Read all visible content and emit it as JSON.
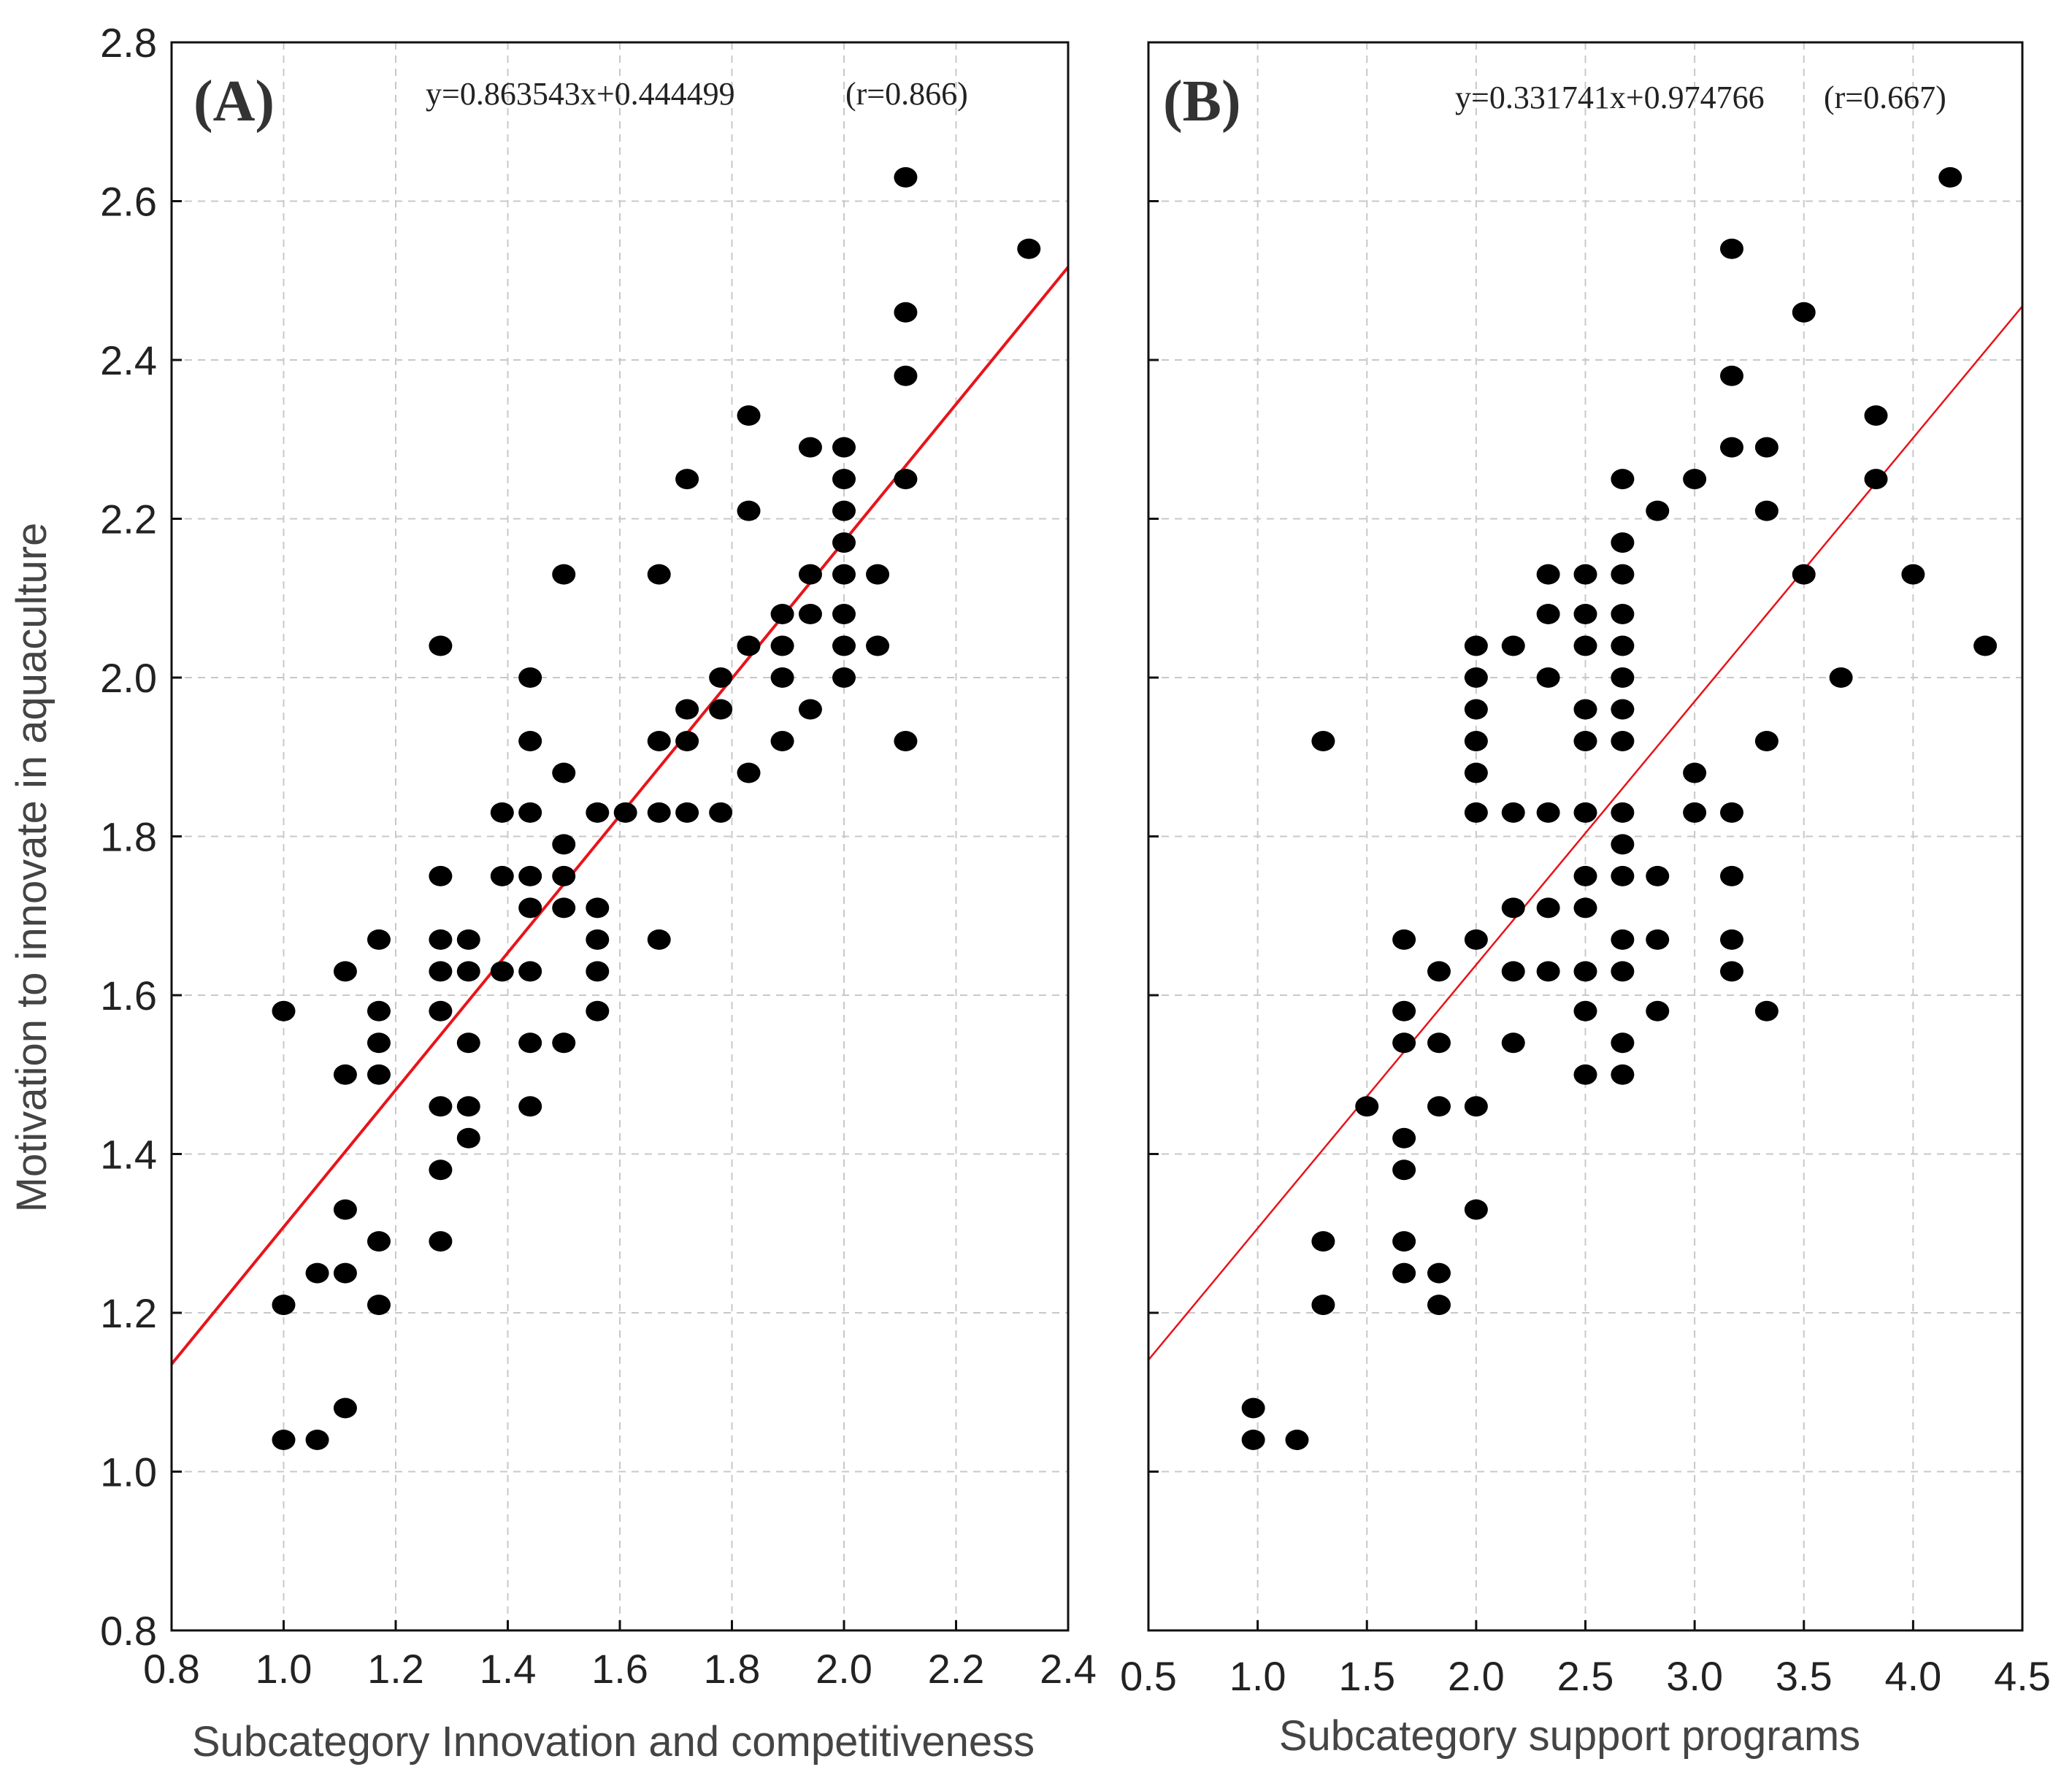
{
  "chart_data": [
    {
      "type": "scatter",
      "panel_label": "(A)",
      "equation": "y=0.863543x+0.444499",
      "r_label": "(r=0.866)",
      "xlabel": "Subcategory Innovation and competitiveness",
      "ylabel": "Motivation to innovate in aquaculture",
      "xlim": [
        0.8,
        2.4
      ],
      "ylim": [
        0.8,
        2.8
      ],
      "xticks": [
        "0.8",
        "1.0",
        "1.2",
        "1.4",
        "1.6",
        "1.8",
        "2.0",
        "2.2",
        "2.4"
      ],
      "yticks": [
        "0.8",
        "1.0",
        "1.2",
        "1.4",
        "1.6",
        "1.8",
        "2.0",
        "2.2",
        "2.4",
        "2.6",
        "2.8"
      ],
      "grid": true,
      "fit": {
        "slope": 0.863543,
        "intercept": 0.444499,
        "color": "#e8141a"
      },
      "points": [
        [
          1.0,
          1.58
        ],
        [
          1.0,
          1.21
        ],
        [
          1.0,
          1.04
        ],
        [
          1.06,
          1.25
        ],
        [
          1.06,
          1.04
        ],
        [
          1.11,
          1.63
        ],
        [
          1.11,
          1.5
        ],
        [
          1.11,
          1.33
        ],
        [
          1.11,
          1.25
        ],
        [
          1.11,
          1.08
        ],
        [
          1.17,
          1.67
        ],
        [
          1.17,
          1.58
        ],
        [
          1.17,
          1.54
        ],
        [
          1.17,
          1.5
        ],
        [
          1.17,
          1.29
        ],
        [
          1.17,
          1.21
        ],
        [
          1.28,
          2.04
        ],
        [
          1.28,
          1.75
        ],
        [
          1.28,
          1.67
        ],
        [
          1.28,
          1.63
        ],
        [
          1.28,
          1.58
        ],
        [
          1.28,
          1.46
        ],
        [
          1.28,
          1.38
        ],
        [
          1.28,
          1.29
        ],
        [
          1.33,
          1.67
        ],
        [
          1.33,
          1.63
        ],
        [
          1.33,
          1.54
        ],
        [
          1.33,
          1.46
        ],
        [
          1.33,
          1.42
        ],
        [
          1.39,
          1.83
        ],
        [
          1.39,
          1.75
        ],
        [
          1.39,
          1.63
        ],
        [
          1.44,
          2.0
        ],
        [
          1.44,
          1.92
        ],
        [
          1.44,
          1.83
        ],
        [
          1.44,
          1.75
        ],
        [
          1.44,
          1.71
        ],
        [
          1.44,
          1.63
        ],
        [
          1.44,
          1.54
        ],
        [
          1.44,
          1.46
        ],
        [
          1.5,
          2.13
        ],
        [
          1.5,
          1.88
        ],
        [
          1.5,
          1.79
        ],
        [
          1.5,
          1.75
        ],
        [
          1.5,
          1.71
        ],
        [
          1.5,
          1.54
        ],
        [
          1.56,
          1.83
        ],
        [
          1.56,
          1.71
        ],
        [
          1.56,
          1.67
        ],
        [
          1.56,
          1.63
        ],
        [
          1.56,
          1.58
        ],
        [
          1.61,
          1.83
        ],
        [
          1.67,
          2.13
        ],
        [
          1.67,
          1.92
        ],
        [
          1.67,
          1.83
        ],
        [
          1.67,
          1.67
        ],
        [
          1.72,
          2.25
        ],
        [
          1.72,
          1.96
        ],
        [
          1.72,
          1.92
        ],
        [
          1.72,
          1.83
        ],
        [
          1.78,
          2.0
        ],
        [
          1.78,
          1.96
        ],
        [
          1.78,
          1.83
        ],
        [
          1.83,
          2.33
        ],
        [
          1.83,
          2.21
        ],
        [
          1.83,
          2.04
        ],
        [
          1.83,
          1.88
        ],
        [
          1.89,
          2.08
        ],
        [
          1.89,
          2.04
        ],
        [
          1.89,
          2.0
        ],
        [
          1.89,
          1.92
        ],
        [
          1.94,
          2.29
        ],
        [
          1.94,
          2.13
        ],
        [
          1.94,
          2.08
        ],
        [
          1.94,
          1.96
        ],
        [
          2.0,
          2.29
        ],
        [
          2.0,
          2.25
        ],
        [
          2.0,
          2.21
        ],
        [
          2.0,
          2.17
        ],
        [
          2.0,
          2.13
        ],
        [
          2.0,
          2.08
        ],
        [
          2.0,
          2.04
        ],
        [
          2.0,
          2.0
        ],
        [
          2.06,
          2.13
        ],
        [
          2.06,
          2.04
        ],
        [
          2.11,
          2.63
        ],
        [
          2.11,
          2.46
        ],
        [
          2.11,
          2.38
        ],
        [
          2.11,
          2.25
        ],
        [
          2.11,
          1.92
        ],
        [
          2.33,
          2.54
        ]
      ]
    },
    {
      "type": "scatter",
      "panel_label": "(B)",
      "equation": "y=0.331741x+0.974766",
      "r_label": "(r=0.667)",
      "xlabel": "Subcategory support programs",
      "ylabel": "",
      "xlim": [
        0.5,
        4.5
      ],
      "ylim": [
        0.8,
        2.8
      ],
      "xticks": [
        "0.5",
        "1.0",
        "1.5",
        "2.0",
        "2.5",
        "3.0",
        "3.5",
        "4.0",
        "4.5"
      ],
      "yticks": [],
      "grid": true,
      "fit": {
        "slope": 0.331741,
        "intercept": 0.974766,
        "color": "#e8141a"
      },
      "points": [
        [
          0.98,
          1.08
        ],
        [
          0.98,
          1.04
        ],
        [
          1.18,
          1.04
        ],
        [
          1.3,
          1.92
        ],
        [
          1.3,
          1.29
        ],
        [
          1.3,
          1.21
        ],
        [
          1.5,
          1.46
        ],
        [
          1.67,
          1.67
        ],
        [
          1.67,
          1.58
        ],
        [
          1.67,
          1.54
        ],
        [
          1.67,
          1.42
        ],
        [
          1.67,
          1.38
        ],
        [
          1.67,
          1.29
        ],
        [
          1.67,
          1.25
        ],
        [
          1.83,
          1.63
        ],
        [
          1.83,
          1.54
        ],
        [
          1.83,
          1.46
        ],
        [
          1.83,
          1.25
        ],
        [
          1.83,
          1.21
        ],
        [
          2.0,
          2.04
        ],
        [
          2.0,
          2.0
        ],
        [
          2.0,
          1.96
        ],
        [
          2.0,
          1.92
        ],
        [
          2.0,
          1.88
        ],
        [
          2.0,
          1.83
        ],
        [
          2.0,
          1.67
        ],
        [
          2.0,
          1.46
        ],
        [
          2.0,
          1.33
        ],
        [
          2.17,
          2.04
        ],
        [
          2.17,
          1.83
        ],
        [
          2.17,
          1.71
        ],
        [
          2.17,
          1.63
        ],
        [
          2.17,
          1.54
        ],
        [
          2.33,
          2.13
        ],
        [
          2.33,
          2.08
        ],
        [
          2.33,
          2.0
        ],
        [
          2.33,
          1.83
        ],
        [
          2.33,
          1.71
        ],
        [
          2.33,
          1.63
        ],
        [
          2.5,
          2.13
        ],
        [
          2.5,
          2.08
        ],
        [
          2.5,
          2.04
        ],
        [
          2.5,
          1.96
        ],
        [
          2.5,
          1.92
        ],
        [
          2.5,
          1.83
        ],
        [
          2.5,
          1.75
        ],
        [
          2.5,
          1.71
        ],
        [
          2.5,
          1.63
        ],
        [
          2.5,
          1.58
        ],
        [
          2.5,
          1.5
        ],
        [
          2.67,
          2.25
        ],
        [
          2.67,
          2.17
        ],
        [
          2.67,
          2.13
        ],
        [
          2.67,
          2.08
        ],
        [
          2.67,
          2.04
        ],
        [
          2.67,
          2.0
        ],
        [
          2.67,
          1.96
        ],
        [
          2.67,
          1.92
        ],
        [
          2.67,
          1.83
        ],
        [
          2.67,
          1.79
        ],
        [
          2.67,
          1.75
        ],
        [
          2.67,
          1.67
        ],
        [
          2.67,
          1.63
        ],
        [
          2.67,
          1.54
        ],
        [
          2.67,
          1.5
        ],
        [
          2.83,
          2.21
        ],
        [
          2.83,
          1.75
        ],
        [
          2.83,
          1.67
        ],
        [
          2.83,
          1.58
        ],
        [
          3.0,
          2.25
        ],
        [
          3.0,
          1.88
        ],
        [
          3.0,
          1.83
        ],
        [
          3.17,
          2.54
        ],
        [
          3.17,
          2.38
        ],
        [
          3.17,
          2.29
        ],
        [
          3.17,
          1.83
        ],
        [
          3.17,
          1.75
        ],
        [
          3.17,
          1.67
        ],
        [
          3.17,
          1.63
        ],
        [
          3.33,
          2.29
        ],
        [
          3.33,
          2.21
        ],
        [
          3.33,
          1.92
        ],
        [
          3.33,
          1.58
        ],
        [
          3.5,
          2.46
        ],
        [
          3.5,
          2.13
        ],
        [
          3.67,
          2.0
        ],
        [
          3.83,
          2.33
        ],
        [
          3.83,
          2.25
        ],
        [
          4.0,
          2.13
        ],
        [
          4.17,
          2.63
        ],
        [
          4.33,
          2.04
        ]
      ]
    }
  ]
}
